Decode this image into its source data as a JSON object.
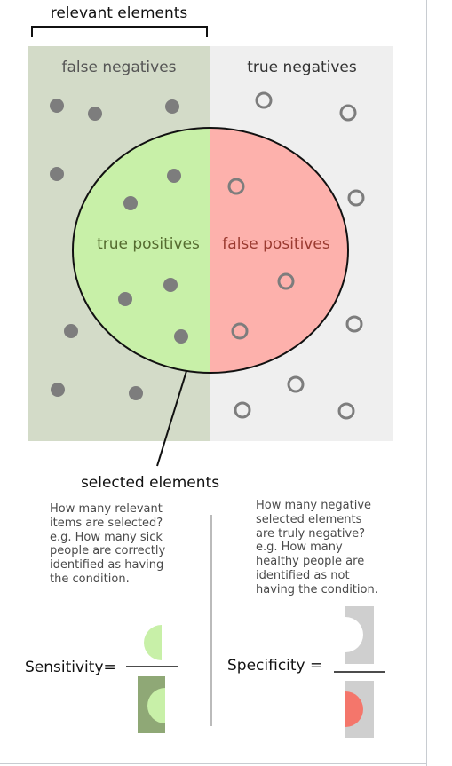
{
  "diagram": {
    "relevant_label": "relevant elements",
    "false_negatives_label": "false negatives",
    "true_negatives_label": "true negatives",
    "true_positives_label": "true positives",
    "false_positives_label": "false positives",
    "selected_label": "selected elements",
    "colors": {
      "relevant_bg": "#d3dbc8",
      "irrelevant_bg": "#efefef",
      "true_positive": "#c8f0a8",
      "false_positive": "#fdb1ac",
      "dot": "#7d7d7d",
      "fn_text": "#555555",
      "tp_text": "#556b2f",
      "fp_text": "#9a3a30"
    }
  },
  "sensitivity": {
    "description": "How many relevant\nitems are selected?\ne.g. How many sick\npeople are correctly\nidentified as having\nthe condition.",
    "label": "Sensitivity="
  },
  "specificity": {
    "description": "How many negative\nselected elements\nare truly negative?\ne.g. How many\nhealthy people are\nidentified as not\nhaving the condition.",
    "label": "Specificity ="
  }
}
